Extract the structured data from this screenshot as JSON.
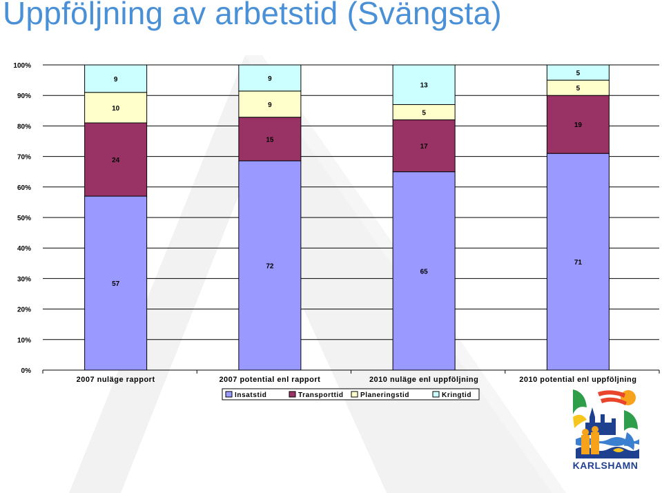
{
  "title": "Uppföljning av arbetstid (Svängsta)",
  "logo": {
    "text": "KARLSHAMN"
  },
  "colors": {
    "title": "#4a90d6",
    "Insatstid": "#9999ff",
    "Transporttid": "#993366",
    "Planeringstid": "#ffffcc",
    "Kringtid": "#ccffff",
    "grid": "#000000"
  },
  "chart_data": {
    "type": "bar",
    "stacked": true,
    "percent_stacked": true,
    "categories": [
      "2007 nuläge rapport",
      "2007 potential enl rapport",
      "2010 nuläge enl uppföljning",
      "2010 potential enl uppföljning"
    ],
    "series": [
      {
        "name": "Insatstid",
        "values": [
          57,
          72,
          65,
          71
        ],
        "color": "#9999ff"
      },
      {
        "name": "Transporttid",
        "values": [
          24,
          15,
          17,
          19
        ],
        "color": "#993366"
      },
      {
        "name": "Planeringstid",
        "values": [
          10,
          9,
          5,
          5
        ],
        "color": "#ffffcc"
      },
      {
        "name": "Kringtid",
        "values": [
          9,
          9,
          13,
          5
        ],
        "color": "#ccffff"
      }
    ],
    "yticks": [
      "0%",
      "10%",
      "20%",
      "30%",
      "40%",
      "50%",
      "60%",
      "70%",
      "80%",
      "90%",
      "100%"
    ],
    "ylim": [
      0,
      100
    ],
    "grid": true,
    "legend": "bottom"
  }
}
